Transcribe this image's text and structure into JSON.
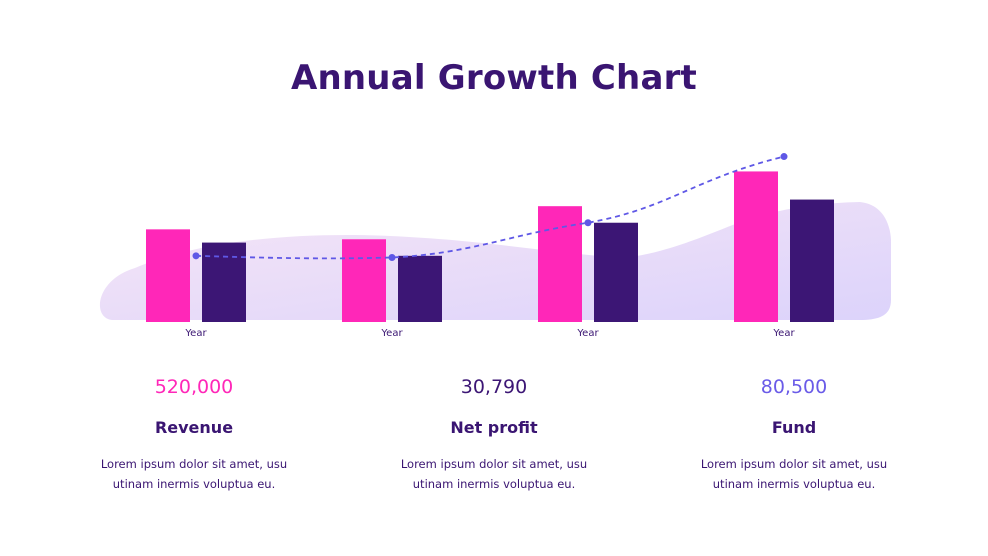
{
  "title": "Annual Growth Chart",
  "colors": {
    "pink": "#ff27b8",
    "purple": "#3c1675",
    "trend": "#5f58e6",
    "wave_top": "#f6e6f6",
    "wave_bottom": "#dcd3fb",
    "title": "#3a1572"
  },
  "chart_data": {
    "type": "bar",
    "title": "Annual Growth Chart",
    "categories": [
      "Year",
      "Year",
      "Year",
      "Year"
    ],
    "series": [
      {
        "values": [
          5.6,
          5.0,
          7.0,
          9.1
        ]
      },
      {
        "values": [
          4.8,
          4.0,
          6.0,
          7.4
        ]
      }
    ],
    "trend_line": {
      "style": "dashed",
      "values": [
        4.0,
        3.9,
        6.0,
        10.0
      ]
    },
    "ylim": [
      0,
      11
    ],
    "grid": false,
    "background": "area wave"
  },
  "stats": [
    {
      "value": "520,000",
      "label": "Revenue",
      "desc1": "Lorem ipsum dolor sit amet, usu",
      "desc2": "utinam inermis voluptua eu.",
      "color": "#ff27b8"
    },
    {
      "value": "30,790",
      "label": "Net profit",
      "desc1": "Lorem ipsum dolor sit amet, usu",
      "desc2": "utinam inermis voluptua eu.",
      "color": "#3c1675"
    },
    {
      "value": "80,500",
      "label": "Fund",
      "desc1": "Lorem ipsum dolor sit amet, usu",
      "desc2": "utinam inermis voluptua eu.",
      "color": "#6a5be8"
    }
  ]
}
